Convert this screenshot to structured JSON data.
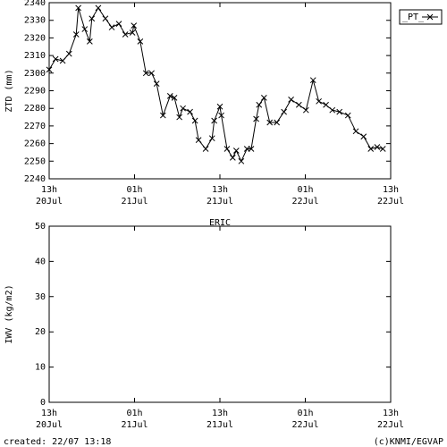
{
  "chart_data": [
    {
      "type": "line",
      "y_label": "ZTD (mm)",
      "xlim": [
        0,
        48
      ],
      "xticks": [
        {
          "value": 0,
          "label": "13h"
        },
        {
          "value": 12,
          "label": "01h"
        },
        {
          "value": 24,
          "label": "13h"
        },
        {
          "value": 36,
          "label": "01h"
        },
        {
          "value": 48,
          "label": "13h"
        }
      ],
      "xtick_dates": [
        "20Jul",
        "21Jul",
        "21Jul",
        "22Jul",
        "22Jul"
      ],
      "ylim": [
        2240,
        2340
      ],
      "yticks": [
        2240,
        2250,
        2260,
        2270,
        2280,
        2290,
        2300,
        2310,
        2320,
        2330,
        2340
      ],
      "legend": "top-right",
      "x": [
        0,
        0.9,
        1.9,
        2.8,
        3.8,
        4.1,
        5.0,
        5.7,
        6.0,
        6.9,
        7.9,
        8.8,
        9.8,
        10.7,
        11.7,
        11.9,
        12.8,
        13.6,
        14.4,
        15.1,
        16.0,
        17.0,
        17.6,
        18.3,
        18.8,
        19.8,
        20.5,
        21.0,
        22.0,
        22.9,
        23.2,
        24.0,
        24.2,
        25.0,
        25.8,
        26.3,
        27.0,
        27.8,
        28.4,
        29.1,
        29.5,
        30.2,
        31.0,
        32.0,
        33.0,
        34.0,
        35.1,
        36.1,
        37.1,
        37.9,
        38.9,
        39.8,
        40.8,
        42.0,
        43.1,
        44.2,
        45.2,
        46.1,
        46.9
      ],
      "series": [
        {
          "name": "_PT_",
          "color": "#000000",
          "values": [
            2302,
            2308,
            2307,
            2311,
            2322,
            2337,
            2325,
            2318,
            2331,
            2337,
            2331,
            2326,
            2328,
            2322,
            2323,
            2327,
            2318,
            2300,
            2300,
            2294,
            2276,
            2287,
            2286,
            2275,
            2280,
            2278,
            2273,
            2262,
            2257,
            2263,
            2273,
            2281,
            2276,
            2257,
            2252,
            2256,
            2250,
            2257,
            2257,
            2274,
            2282,
            2286,
            2272,
            2272,
            2278,
            2285,
            2282,
            2279,
            2296,
            2284,
            2282,
            2279,
            2278,
            2276,
            2267,
            2264,
            2257,
            2258,
            2257
          ]
        }
      ]
    },
    {
      "type": "line",
      "title": "ERIC",
      "y_label": "IWV (kg/m2)",
      "xlim": [
        0,
        48
      ],
      "xticks": [
        {
          "value": 0,
          "label": "13h"
        },
        {
          "value": 12,
          "label": "01h"
        },
        {
          "value": 24,
          "label": "13h"
        },
        {
          "value": 36,
          "label": "01h"
        },
        {
          "value": 48,
          "label": "13h"
        }
      ],
      "xtick_dates": [
        "20Jul",
        "21Jul",
        "21Jul",
        "22Jul",
        "22Jul"
      ],
      "ylim": [
        0,
        50
      ],
      "yticks": [
        0,
        10,
        20,
        30,
        40,
        50
      ],
      "x": [],
      "series": []
    }
  ],
  "footer": {
    "created": "created: 22/07 13:18",
    "credit": "(c)KNMI/EGVAP"
  }
}
